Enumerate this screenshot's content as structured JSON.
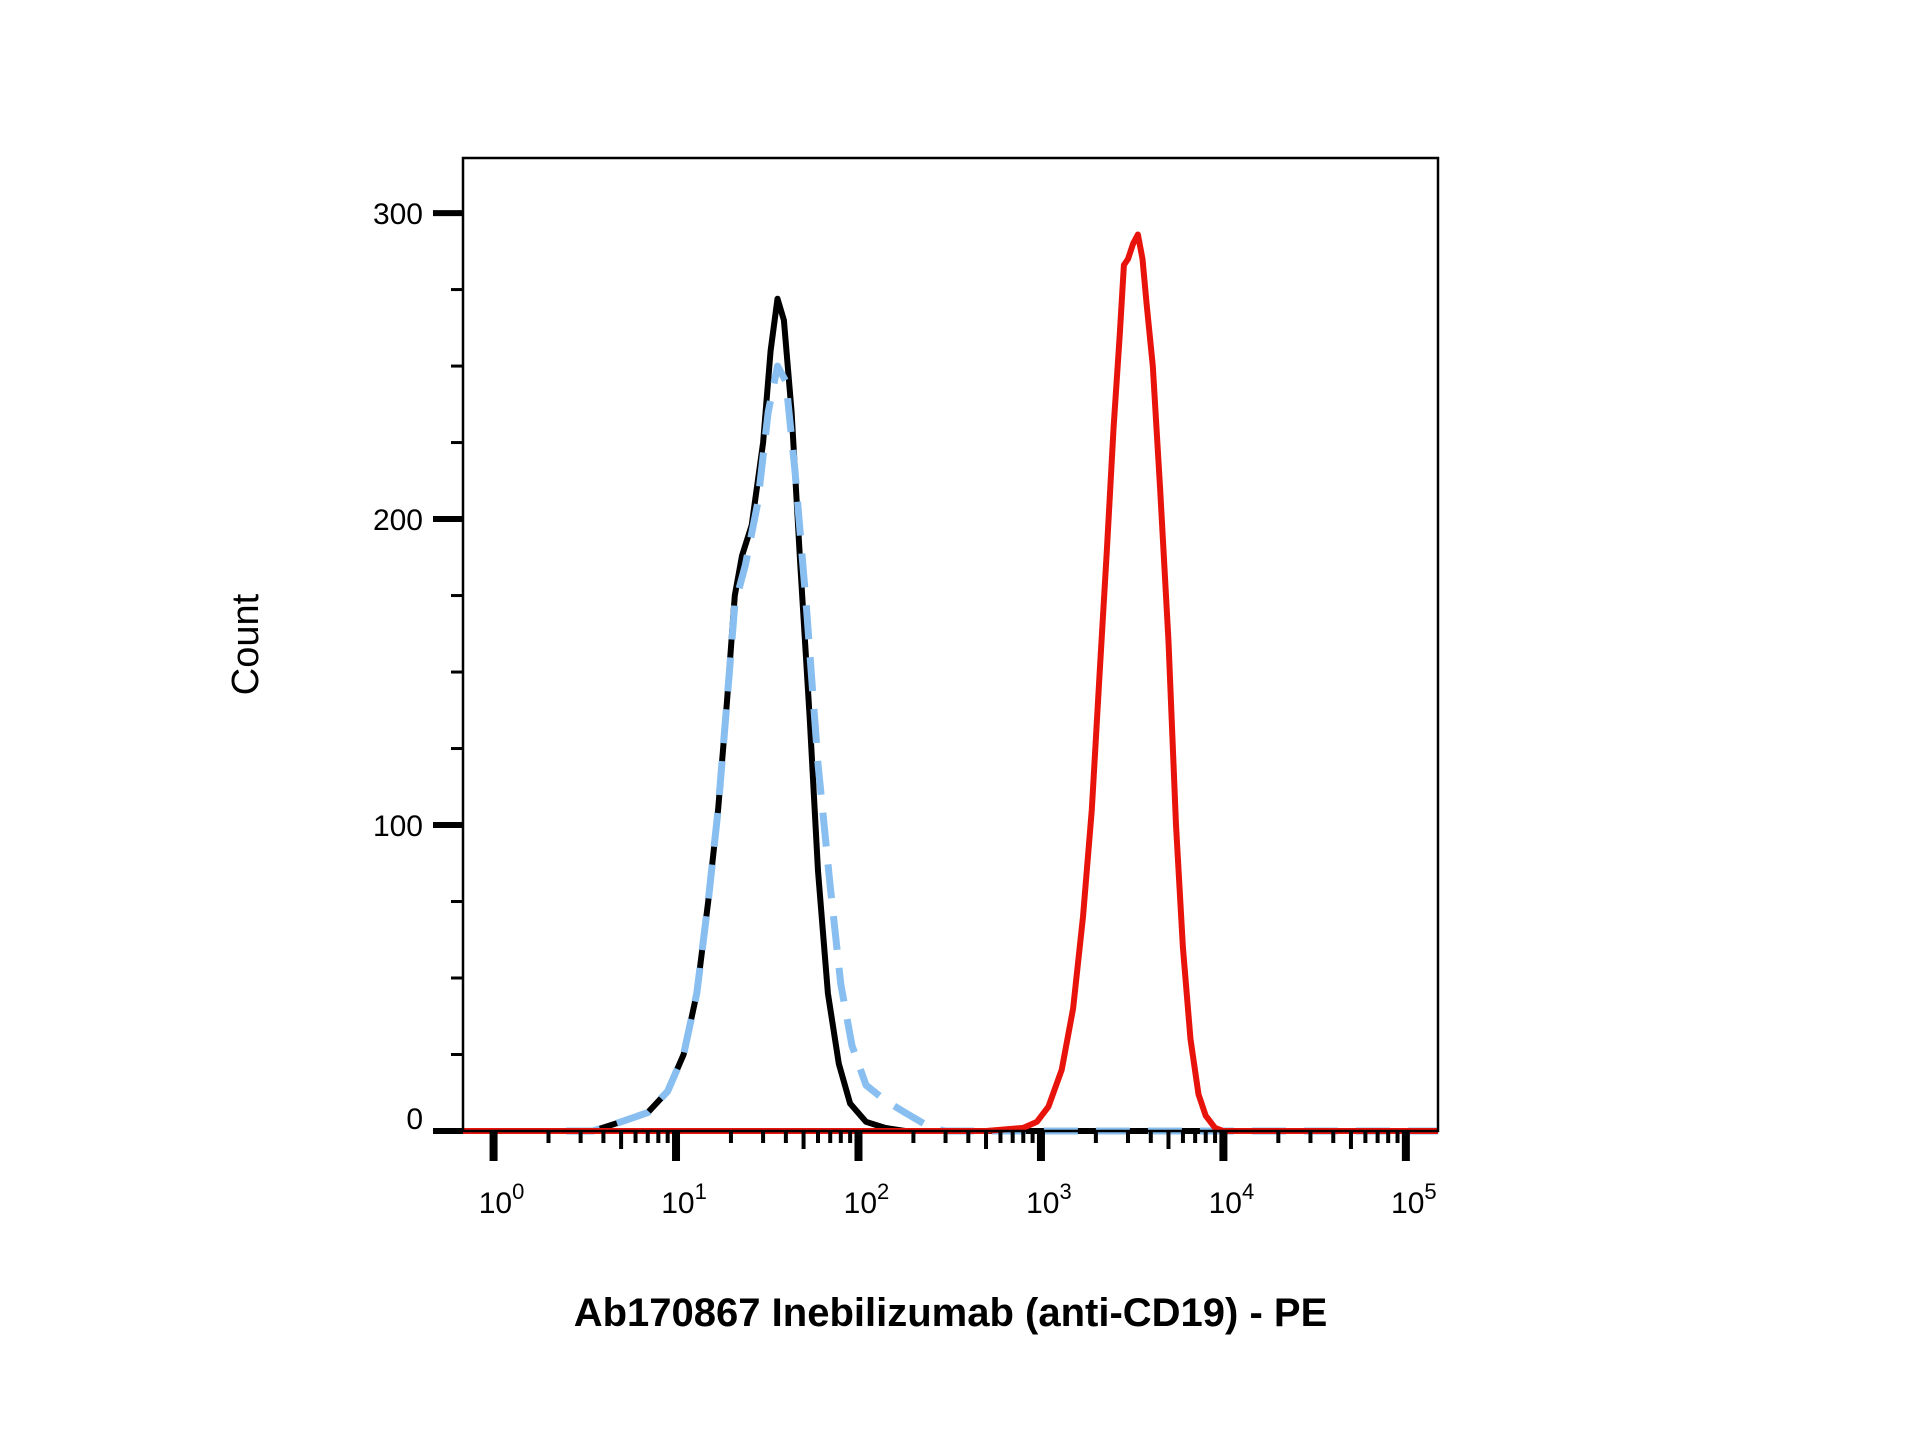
{
  "chart_data": {
    "type": "line",
    "title": "",
    "xlabel": "Ab170867 Inebilizumab (anti-CD19) - PE",
    "ylabel": "Count",
    "x_scale": "log",
    "xlim": [
      0.68,
      150000
    ],
    "ylim": [
      0,
      318
    ],
    "y_ticks": [
      0,
      100,
      200,
      300
    ],
    "y_tick_labels": [
      "0",
      "100",
      "200",
      "300"
    ],
    "x_ticks": [
      1,
      10,
      100,
      1000,
      10000,
      100000
    ],
    "x_tick_labels": [
      {
        "base": "10",
        "exp": "0"
      },
      {
        "base": "10",
        "exp": "1"
      },
      {
        "base": "10",
        "exp": "2"
      },
      {
        "base": "10",
        "exp": "3"
      },
      {
        "base": "10",
        "exp": "4"
      },
      {
        "base": "10",
        "exp": "5"
      }
    ],
    "grid": false,
    "legend": "none",
    "series": [
      {
        "color": "#000000",
        "style": "solid",
        "points": [
          [
            2.5,
            0
          ],
          [
            3.5,
            0
          ],
          [
            5,
            3
          ],
          [
            7,
            6
          ],
          [
            9,
            13
          ],
          [
            11,
            25
          ],
          [
            13,
            45
          ],
          [
            15,
            75
          ],
          [
            17,
            105
          ],
          [
            19,
            140
          ],
          [
            21,
            175
          ],
          [
            23,
            188
          ],
          [
            26,
            198
          ],
          [
            30,
            225
          ],
          [
            33,
            255
          ],
          [
            36,
            272
          ],
          [
            39,
            265
          ],
          [
            43,
            235
          ],
          [
            48,
            185
          ],
          [
            54,
            135
          ],
          [
            60,
            85
          ],
          [
            68,
            45
          ],
          [
            78,
            22
          ],
          [
            90,
            9
          ],
          [
            110,
            3
          ],
          [
            140,
            1
          ],
          [
            180,
            0
          ],
          [
            300,
            0
          ],
          [
            5000,
            0
          ],
          [
            150000,
            0
          ]
        ]
      },
      {
        "color": "#88bff0",
        "style": "dashed",
        "points": [
          [
            2.5,
            0
          ],
          [
            3.5,
            0
          ],
          [
            5,
            3
          ],
          [
            7,
            6
          ],
          [
            9,
            13
          ],
          [
            11,
            25
          ],
          [
            13,
            45
          ],
          [
            15,
            75
          ],
          [
            17,
            105
          ],
          [
            19,
            140
          ],
          [
            21,
            172
          ],
          [
            24,
            185
          ],
          [
            28,
            205
          ],
          [
            32,
            235
          ],
          [
            36,
            250
          ],
          [
            40,
            245
          ],
          [
            45,
            215
          ],
          [
            52,
            170
          ],
          [
            60,
            120
          ],
          [
            70,
            80
          ],
          [
            80,
            48
          ],
          [
            92,
            28
          ],
          [
            110,
            15
          ],
          [
            140,
            10
          ],
          [
            180,
            6
          ],
          [
            250,
            1
          ],
          [
            300,
            0
          ],
          [
            150000,
            0
          ]
        ]
      },
      {
        "color": "#e8140c",
        "style": "solid",
        "points": [
          [
            0.68,
            0
          ],
          [
            500,
            0
          ],
          [
            800,
            1
          ],
          [
            950,
            3
          ],
          [
            1100,
            8
          ],
          [
            1300,
            20
          ],
          [
            1500,
            40
          ],
          [
            1700,
            70
          ],
          [
            1900,
            105
          ],
          [
            2100,
            150
          ],
          [
            2300,
            190
          ],
          [
            2500,
            230
          ],
          [
            2700,
            260
          ],
          [
            2850,
            283
          ],
          [
            3000,
            285
          ],
          [
            3200,
            290
          ],
          [
            3400,
            293
          ],
          [
            3600,
            285
          ],
          [
            3800,
            270
          ],
          [
            4100,
            250
          ],
          [
            4500,
            210
          ],
          [
            5000,
            160
          ],
          [
            5500,
            100
          ],
          [
            6000,
            60
          ],
          [
            6600,
            30
          ],
          [
            7300,
            12
          ],
          [
            8000,
            5
          ],
          [
            9000,
            1
          ],
          [
            10000,
            0
          ],
          [
            150000,
            0
          ]
        ]
      }
    ]
  }
}
